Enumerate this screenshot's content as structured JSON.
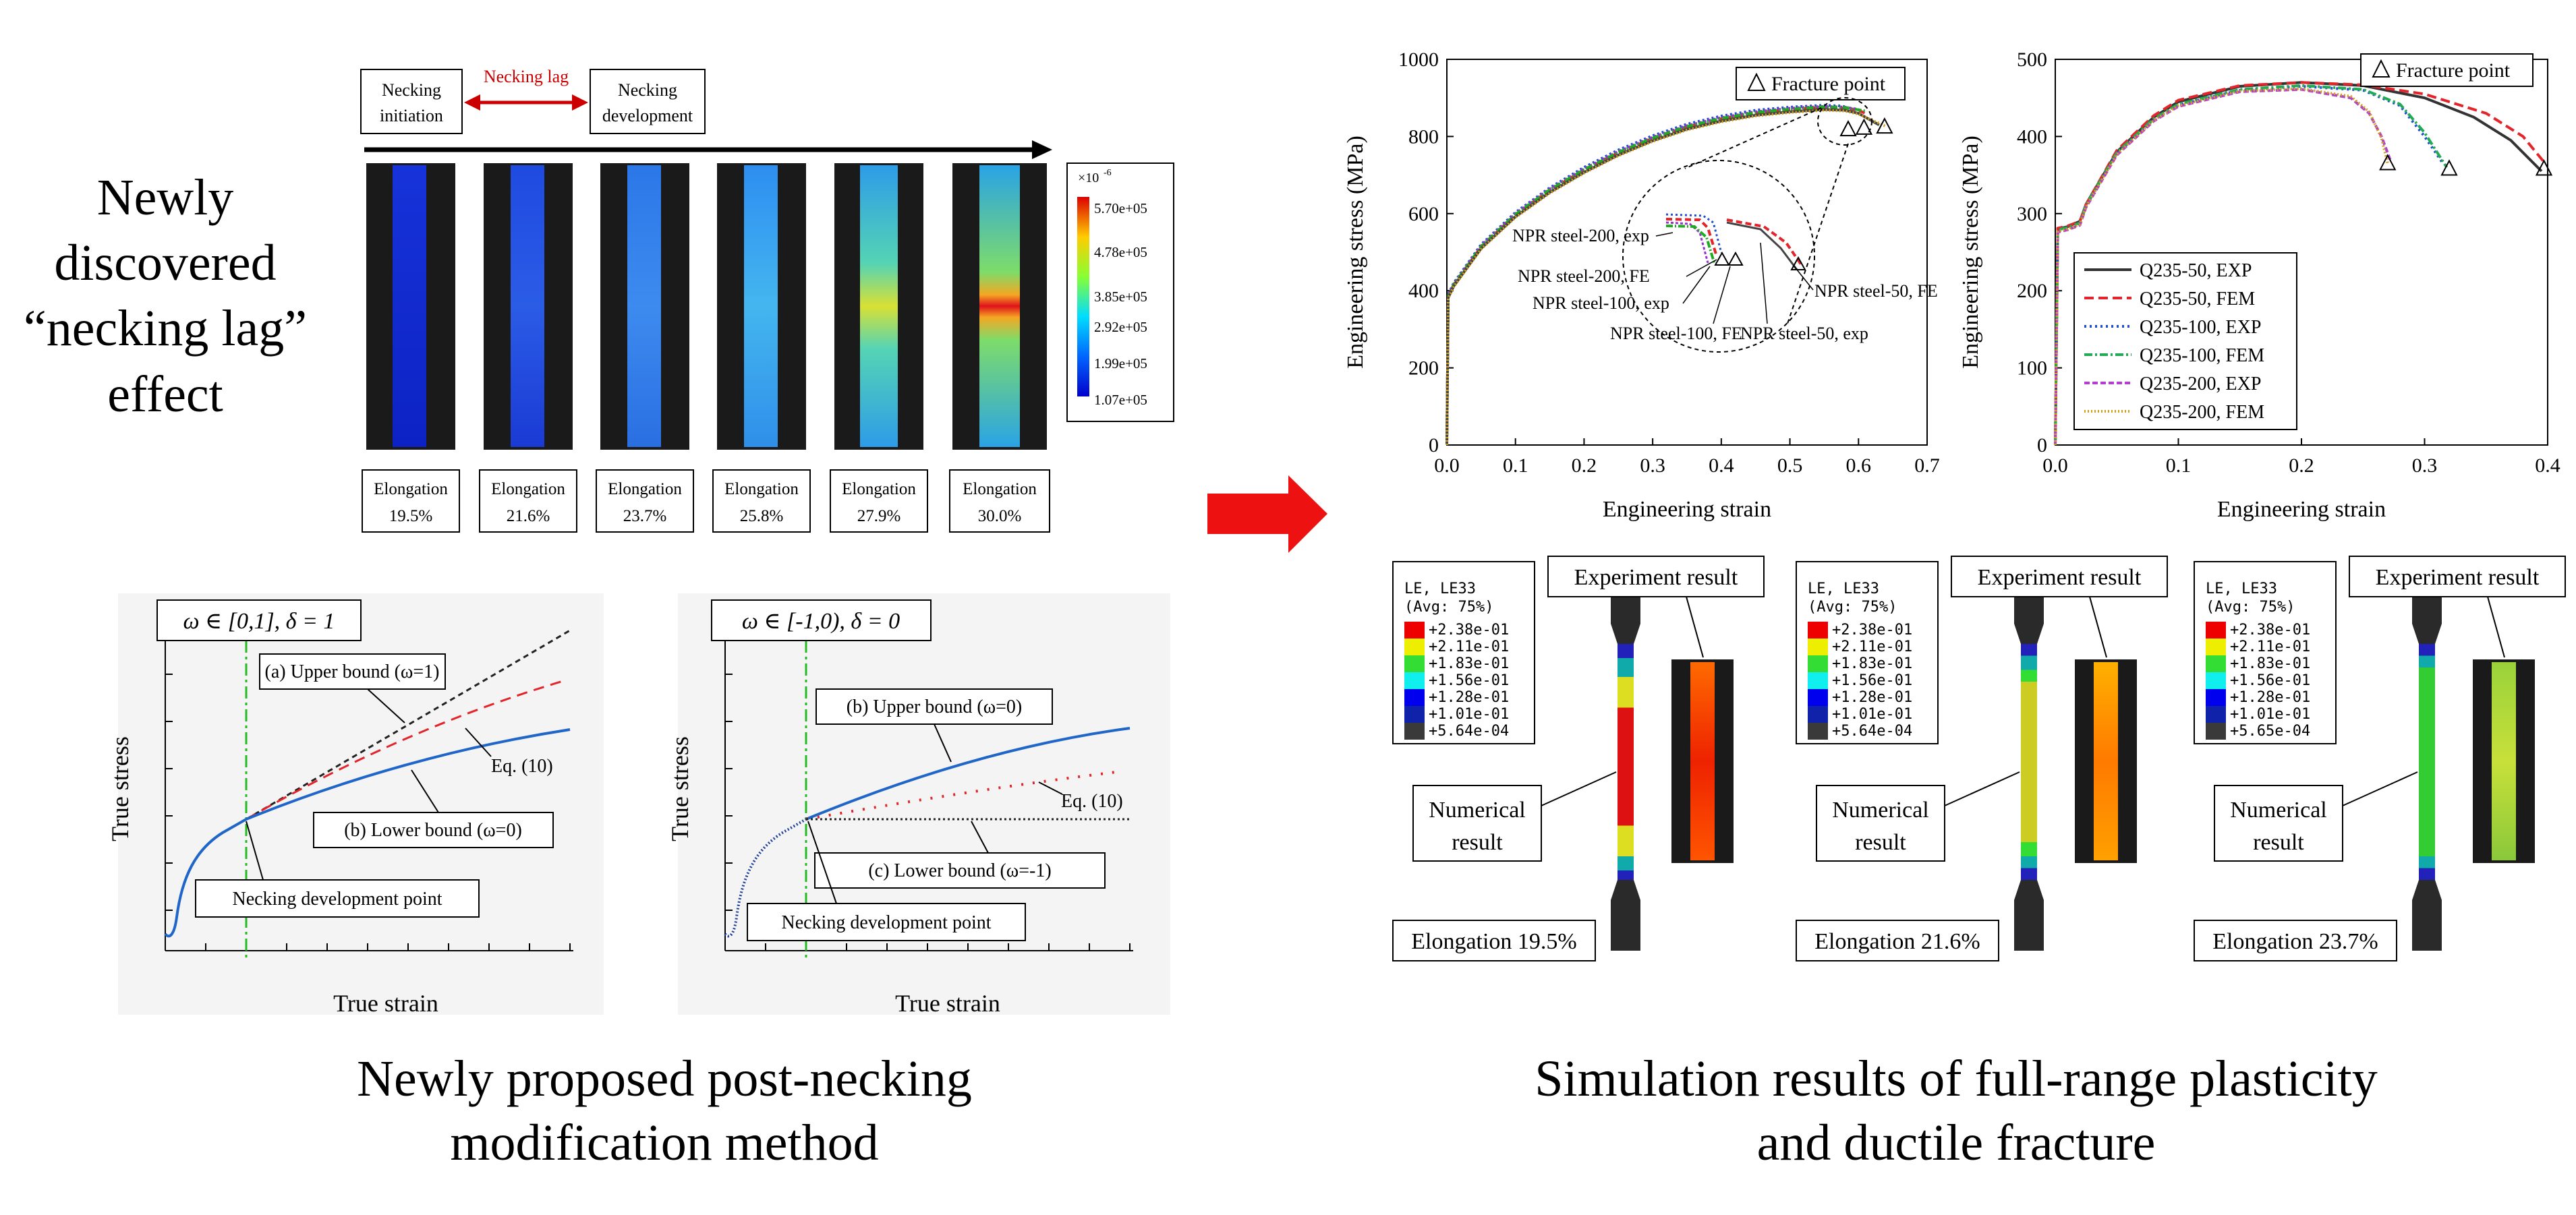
{
  "headline": {
    "lines": [
      "Newly",
      "discovered",
      "“necking lag”",
      "effect"
    ]
  },
  "necking_strip": {
    "box_initiation": [
      "Necking",
      "initiation"
    ],
    "lag_label": "Necking lag",
    "box_development": [
      "Necking",
      "development"
    ],
    "colorbar_title": "×10",
    "colorbar_exponent": "-6",
    "colorbar_ticks": [
      "5.70e+05",
      "4.78e+05",
      "3.85e+05",
      "2.92e+05",
      "1.99e+05",
      "1.07e+05"
    ],
    "elongation_word": "Elongation",
    "elongations": [
      "19.5%",
      "21.6%",
      "23.7%",
      "25.8%",
      "27.9%",
      "30.0%"
    ]
  },
  "schematic_left": {
    "condition": "ω ∈ [0,1],    δ = 1",
    "upper": "(a) Upper bound (ω=1)",
    "eq": "Eq. (10)",
    "lower": "(b) Lower bound (ω=0)",
    "point": "Necking development point",
    "ylabel": "True stress",
    "xlabel": "True strain"
  },
  "schematic_right": {
    "condition": "ω ∈ [-1,0),    δ = 0",
    "upper": "(b) Upper bound (ω=0)",
    "eq": "Eq. (10)",
    "lower": "(c) Lower bound (ω=-1)",
    "point": "Necking development point",
    "ylabel": "True stress",
    "xlabel": "True strain"
  },
  "caption_left": [
    "Newly proposed post-necking",
    "modification method"
  ],
  "caption_right": [
    "Simulation results of full-range plasticity",
    "and ductile fracture"
  ],
  "fea": {
    "legend_title": [
      "LE, LE33",
      "(Avg: 75%)"
    ],
    "experiment_label": "Experiment result",
    "numerical_label": [
      "Numerical",
      "result"
    ],
    "panels": [
      {
        "values": [
          "+2.38e-01",
          "+2.11e-01",
          "+1.83e-01",
          "+1.56e-01",
          "+1.28e-01",
          "+1.01e-01",
          "+5.64e-04"
        ],
        "elongation": "Elongation 19.5%"
      },
      {
        "values": [
          "+2.38e-01",
          "+2.11e-01",
          "+1.83e-01",
          "+1.56e-01",
          "+1.28e-01",
          "+1.01e-01",
          "+5.64e-04"
        ],
        "elongation": "Elongation 21.6%"
      },
      {
        "values": [
          "+2.38e-01",
          "+2.11e-01",
          "+1.83e-01",
          "+1.56e-01",
          "+1.28e-01",
          "+1.01e-01",
          "+5.65e-04"
        ],
        "elongation": "Elongation 23.7%"
      }
    ]
  },
  "colors": {
    "arrow_red": "#ee1111",
    "lag_red": "#cc0000",
    "blue_curve": "#1f66c8",
    "red_dash": "#e3242b",
    "green_dashdot": "#22bb22"
  },
  "chart_data": [
    {
      "type": "line",
      "xlabel": "Engineering strain",
      "ylabel": "Engineering stress (MPa)",
      "xlim": [
        0.0,
        0.7
      ],
      "ylim": [
        0,
        1000
      ],
      "xticks": [
        "0.0",
        "0.1",
        "0.2",
        "0.3",
        "0.4",
        "0.5",
        "0.6",
        "0.7"
      ],
      "yticks": [
        "0",
        "200",
        "400",
        "600",
        "800",
        "1000"
      ],
      "legend_box": "Fracture point",
      "series": [
        {
          "name": "NPR steel-200, exp",
          "color": "#1f4fd0",
          "dash": "3,4",
          "x": [
            0,
            0.002,
            0.01,
            0.05,
            0.1,
            0.15,
            0.2,
            0.25,
            0.3,
            0.35,
            0.4,
            0.45,
            0.5,
            0.55,
            0.575,
            0.585
          ],
          "y": [
            0,
            390,
            420,
            520,
            603,
            667,
            720,
            765,
            802,
            832,
            853,
            868,
            876,
            881,
            879,
            875
          ]
        },
        {
          "name": "NPR steel-200, FE",
          "color": "#e3242b",
          "dash": "9,5",
          "x": [
            0,
            0.002,
            0.01,
            0.05,
            0.1,
            0.15,
            0.2,
            0.25,
            0.3,
            0.35,
            0.4,
            0.45,
            0.5,
            0.55,
            0.58,
            0.6,
            0.61
          ],
          "y": [
            0,
            385,
            415,
            514,
            597,
            661,
            713,
            758,
            795,
            825,
            846,
            861,
            870,
            876,
            874,
            868,
            860
          ]
        },
        {
          "name": "NPR steel-100, exp",
          "color": "#9b30d0",
          "dash": "4,3",
          "x": [
            0,
            0.002,
            0.01,
            0.05,
            0.1,
            0.15,
            0.2,
            0.25,
            0.3,
            0.35,
            0.4,
            0.45,
            0.5,
            0.55,
            0.58,
            0.6
          ],
          "y": [
            0,
            388,
            418,
            517,
            600,
            664,
            716,
            761,
            798,
            828,
            849,
            864,
            873,
            878,
            876,
            870
          ]
        },
        {
          "name": "NPR steel-100, FE",
          "color": "#22aa22",
          "dash": "10,3,2,3",
          "x": [
            0,
            0.002,
            0.01,
            0.05,
            0.1,
            0.15,
            0.2,
            0.25,
            0.3,
            0.35,
            0.4,
            0.45,
            0.5,
            0.55,
            0.58,
            0.61
          ],
          "y": [
            0,
            386,
            416,
            515,
            598,
            662,
            714,
            759,
            796,
            826,
            847,
            862,
            871,
            877,
            875,
            866
          ]
        },
        {
          "name": "NPR steel-50, exp",
          "color": "#444444",
          "dash": "",
          "x": [
            0,
            0.002,
            0.01,
            0.05,
            0.1,
            0.15,
            0.2,
            0.25,
            0.3,
            0.35,
            0.4,
            0.45,
            0.5,
            0.55,
            0.58,
            0.6,
            0.63
          ],
          "y": [
            0,
            382,
            412,
            510,
            592,
            655,
            707,
            752,
            789,
            819,
            840,
            855,
            864,
            870,
            868,
            860,
            830
          ]
        },
        {
          "name": "NPR steel-50, FE",
          "color": "#d4a017",
          "dash": "2,3",
          "x": [
            0,
            0.002,
            0.01,
            0.05,
            0.1,
            0.15,
            0.2,
            0.25,
            0.3,
            0.35,
            0.4,
            0.45,
            0.5,
            0.55,
            0.58,
            0.6,
            0.64
          ],
          "y": [
            0,
            380,
            410,
            508,
            590,
            653,
            705,
            750,
            787,
            817,
            838,
            853,
            862,
            868,
            866,
            858,
            826
          ]
        }
      ],
      "inset_labels": [
        "NPR steel-200, exp",
        "NPR steel-200, FE",
        "NPR steel-100, exp",
        "NPR steel-100, FE",
        "NPR steel-50, exp",
        "NPR steel-50, FE"
      ],
      "fracture_points": [
        {
          "x": 0.585,
          "y": 818
        },
        {
          "x": 0.608,
          "y": 822
        },
        {
          "x": 0.638,
          "y": 825
        }
      ]
    },
    {
      "type": "line",
      "xlabel": "Engineering strain",
      "ylabel": "Engineering stress (MPa)",
      "xlim": [
        0.0,
        0.4
      ],
      "ylim": [
        0,
        500
      ],
      "xticks": [
        "0.0",
        "0.1",
        "0.2",
        "0.3",
        "0.4"
      ],
      "yticks": [
        "0",
        "100",
        "200",
        "300",
        "400",
        "500"
      ],
      "legend_box": "Fracture point",
      "series": [
        {
          "name": "Q235-50, EXP",
          "color": "#333333",
          "dash": "",
          "x": [
            0,
            0.002,
            0.01,
            0.02,
            0.025,
            0.05,
            0.08,
            0.1,
            0.15,
            0.2,
            0.25,
            0.3,
            0.34,
            0.37,
            0.395
          ],
          "y": [
            0,
            280,
            283,
            290,
            312,
            380,
            425,
            445,
            465,
            470,
            466,
            450,
            425,
            395,
            355
          ]
        },
        {
          "name": "Q235-50, FEM",
          "color": "#e3242b",
          "dash": "14,7",
          "x": [
            0,
            0.002,
            0.01,
            0.02,
            0.025,
            0.05,
            0.08,
            0.1,
            0.15,
            0.2,
            0.25,
            0.3,
            0.35,
            0.38,
            0.398
          ],
          "y": [
            0,
            281,
            284,
            290,
            312,
            382,
            427,
            447,
            466,
            470,
            467,
            455,
            430,
            400,
            365
          ]
        },
        {
          "name": "Q235-100, EXP",
          "color": "#1f4fd0",
          "dash": "3,5",
          "x": [
            0,
            0.002,
            0.01,
            0.02,
            0.025,
            0.05,
            0.08,
            0.1,
            0.15,
            0.2,
            0.25,
            0.28,
            0.3,
            0.315
          ],
          "y": [
            0,
            278,
            281,
            287,
            310,
            378,
            422,
            441,
            460,
            465,
            460,
            440,
            400,
            365
          ]
        },
        {
          "name": "Q235-100, FEM",
          "color": "#22aa55",
          "dash": "12,4,3,4",
          "x": [
            0,
            0.002,
            0.01,
            0.02,
            0.025,
            0.05,
            0.08,
            0.1,
            0.15,
            0.2,
            0.25,
            0.28,
            0.3,
            0.318
          ],
          "y": [
            0,
            279,
            282,
            288,
            311,
            379,
            423,
            442,
            461,
            466,
            461,
            442,
            405,
            360
          ]
        },
        {
          "name": "Q235-200, EXP",
          "color": "#b23fd0",
          "dash": "8,4",
          "x": [
            0,
            0.002,
            0.01,
            0.02,
            0.025,
            0.05,
            0.08,
            0.1,
            0.15,
            0.2,
            0.24,
            0.255,
            0.265,
            0.272
          ],
          "y": [
            0,
            276,
            279,
            285,
            308,
            376,
            420,
            439,
            458,
            461,
            450,
            430,
            400,
            370
          ]
        },
        {
          "name": "Q235-200, FEM",
          "color": "#d4a017",
          "dash": "2,3",
          "x": [
            0,
            0.002,
            0.01,
            0.02,
            0.025,
            0.05,
            0.08,
            0.1,
            0.15,
            0.2,
            0.24,
            0.255,
            0.265,
            0.27
          ],
          "y": [
            0,
            277,
            280,
            286,
            309,
            377,
            421,
            440,
            459,
            462,
            452,
            432,
            398,
            365
          ]
        }
      ],
      "fracture_points": [
        {
          "x": 0.27,
          "y": 365
        },
        {
          "x": 0.32,
          "y": 358
        },
        {
          "x": 0.397,
          "y": 358
        }
      ]
    }
  ]
}
